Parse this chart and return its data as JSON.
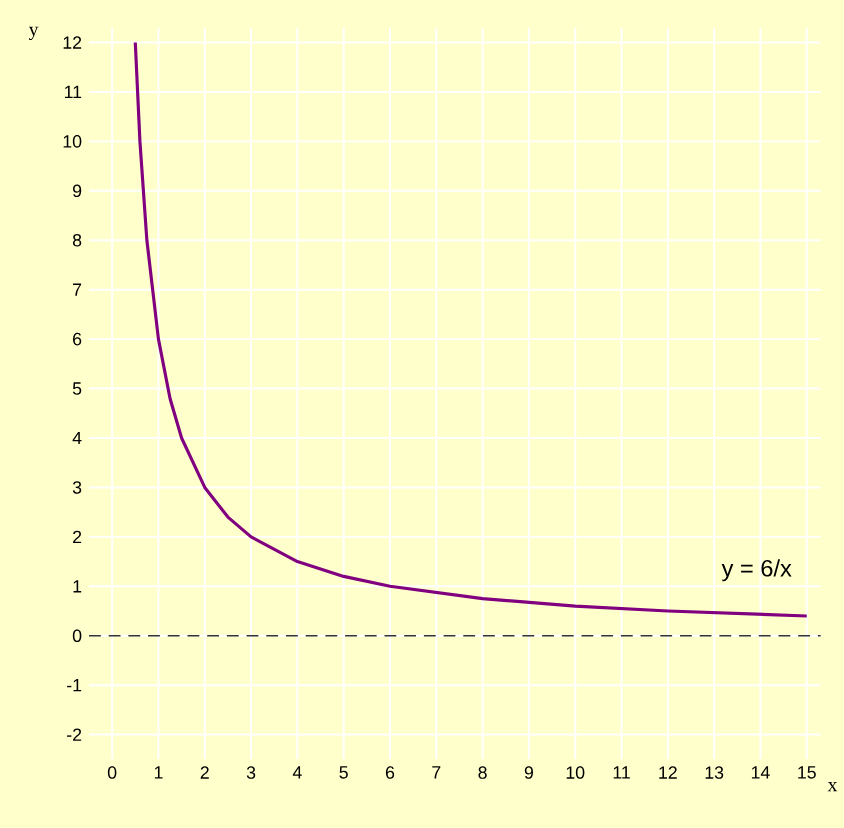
{
  "chart_data": {
    "type": "line",
    "xlabel": "x",
    "ylabel": "y",
    "x": [
      0.5,
      0.6,
      0.75,
      1,
      1.25,
      1.5,
      2,
      2.5,
      3,
      4,
      5,
      6,
      8,
      10,
      12,
      15
    ],
    "series": [
      {
        "name": "y = 6/x",
        "color": "#800080",
        "values": [
          12,
          10,
          8,
          6,
          4.8,
          4,
          3,
          2.4,
          2,
          1.5,
          1.2,
          1,
          0.75,
          0.6,
          0.5,
          0.4
        ]
      }
    ],
    "xlim": [
      -0.5,
      15.3
    ],
    "ylim": [
      -2.5,
      12.3
    ],
    "xticks": [
      0,
      1,
      2,
      3,
      4,
      5,
      6,
      7,
      8,
      9,
      10,
      11,
      12,
      13,
      14,
      15
    ],
    "yticks": [
      -2,
      -1,
      0,
      1,
      2,
      3,
      4,
      5,
      6,
      7,
      8,
      9,
      10,
      11,
      12
    ],
    "grid": true,
    "marker": "none",
    "line_style": "solid",
    "ref_lines": [
      {
        "axis": "y",
        "value": 0,
        "color": "#333333",
        "line_style": "dashed"
      }
    ]
  }
}
